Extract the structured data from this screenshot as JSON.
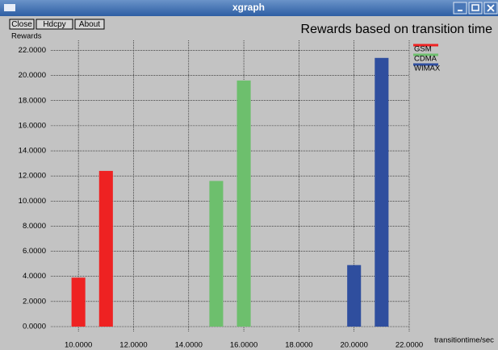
{
  "window_title": "xgraph",
  "buttons": [
    "Close",
    "Hdcpy",
    "About"
  ],
  "chart_data": {
    "type": "bar",
    "title": "Rewards based on transition time",
    "y_label": "Rewards",
    "x_label": "transitiontime/sec",
    "series": [
      {
        "name": "GSM",
        "color": "#ee2222",
        "x": [
          10,
          11
        ],
        "values": [
          3.9,
          12.4
        ]
      },
      {
        "name": "CDMA",
        "color": "#6dbf6d",
        "x": [
          15,
          16
        ],
        "values": [
          11.6,
          19.6
        ]
      },
      {
        "name": "WIMAX",
        "color": "#2f4e9e",
        "x": [
          20,
          21
        ],
        "values": [
          4.9,
          21.4
        ]
      }
    ],
    "bar_width": 0.5,
    "xlim": [
      9,
      22
    ],
    "ylim": [
      0,
      22.8
    ],
    "xticks": [
      {
        "value": 10,
        "label": "10.0000"
      },
      {
        "value": 12,
        "label": "12.0000"
      },
      {
        "value": 14,
        "label": "14.0000"
      },
      {
        "value": 16,
        "label": "16.0000"
      },
      {
        "value": 18,
        "label": "18.0000"
      },
      {
        "value": 20,
        "label": "20.0000"
      },
      {
        "value": 22,
        "label": "22.0000"
      }
    ],
    "yticks": [
      {
        "value": 0,
        "label": "0.0000"
      },
      {
        "value": 2,
        "label": "2.0000"
      },
      {
        "value": 4,
        "label": "4.0000"
      },
      {
        "value": 6,
        "label": "6.0000"
      },
      {
        "value": 8,
        "label": "8.0000"
      },
      {
        "value": 10,
        "label": "10.0000"
      },
      {
        "value": 12,
        "label": "12.0000"
      },
      {
        "value": 14,
        "label": "14.0000"
      },
      {
        "value": 16,
        "label": "16.0000"
      },
      {
        "value": 18,
        "label": "18.0000"
      },
      {
        "value": 20,
        "label": "20.0000"
      },
      {
        "value": 22,
        "label": "22.0000"
      }
    ],
    "grid": true,
    "legend": "right"
  }
}
